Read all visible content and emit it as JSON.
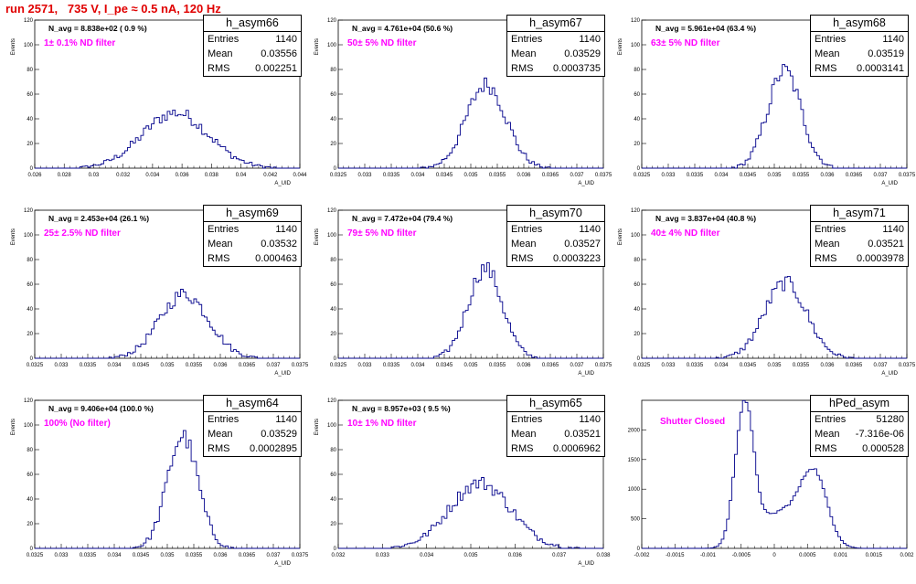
{
  "title": "run 2571,   735 V, I_pe ≈ 0.5 nA, 120 Hz",
  "colors": {
    "title": "#e00000",
    "histogram": "#00008b",
    "note": "#ff00ff"
  },
  "chart_data": [
    {
      "type": "histogram",
      "name": "h_asym66",
      "navg": "N_avg = 8.838e+02 ( 0.9 %)",
      "note": "1± 0.1% ND filter",
      "stats": {
        "Entries": "1140",
        "Mean": "0.03556",
        "RMS": "0.002251"
      },
      "xlabel": "A_UID",
      "ylabel": "Events",
      "xlim": [
        0.026,
        0.044
      ],
      "ylim": [
        0,
        120
      ],
      "xticks": [
        "0.026",
        "0.028",
        "0.03",
        "0.032",
        "0.034",
        "0.036",
        "0.038",
        "0.04",
        "0.042",
        "0.044"
      ],
      "yticks": [
        "0",
        "20",
        "40",
        "60",
        "80",
        "100",
        "120"
      ],
      "peak": 45
    },
    {
      "type": "histogram",
      "name": "h_asym67",
      "navg": "N_avg = 4.761e+04 (50.6 %)",
      "note": "50± 5% ND filter",
      "stats": {
        "Entries": "1140",
        "Mean": "0.03529",
        "RMS": "0.0003735"
      },
      "xlabel": "A_UID",
      "ylabel": "Events",
      "xlim": [
        0.0325,
        0.0375
      ],
      "ylim": [
        0,
        120
      ],
      "xticks": [
        "0.0325",
        "0.033",
        "0.0335",
        "0.034",
        "0.0345",
        "0.035",
        "0.0355",
        "0.036",
        "0.0365",
        "0.037",
        "0.0375"
      ],
      "yticks": [
        "0",
        "20",
        "40",
        "60",
        "80",
        "100",
        "120"
      ],
      "peak": 68
    },
    {
      "type": "histogram",
      "name": "h_asym68",
      "navg": "N_avg = 5.961e+04 (63.4 %)",
      "note": "63± 5% ND filter",
      "stats": {
        "Entries": "1140",
        "Mean": "0.03519",
        "RMS": "0.0003141"
      },
      "xlabel": "A_UID",
      "ylabel": "Events",
      "xlim": [
        0.0325,
        0.0375
      ],
      "ylim": [
        0,
        120
      ],
      "xticks": [
        "0.0325",
        "0.033",
        "0.0335",
        "0.034",
        "0.0345",
        "0.035",
        "0.0355",
        "0.036",
        "0.0365",
        "0.037",
        "0.0375"
      ],
      "yticks": [
        "0",
        "20",
        "40",
        "60",
        "80",
        "100",
        "120"
      ],
      "peak": 79
    },
    {
      "type": "histogram",
      "name": "h_asym69",
      "navg": "N_avg = 2.453e+04 (26.1 %)",
      "note": "25± 2.5% ND filter",
      "stats": {
        "Entries": "1140",
        "Mean": "0.03532",
        "RMS": "0.000463"
      },
      "xlabel": "A_UID",
      "ylabel": "Events",
      "xlim": [
        0.0325,
        0.0375
      ],
      "ylim": [
        0,
        120
      ],
      "xticks": [
        "0.0325",
        "0.033",
        "0.0335",
        "0.034",
        "0.0345",
        "0.035",
        "0.0355",
        "0.036",
        "0.0365",
        "0.037",
        "0.0375"
      ],
      "yticks": [
        "0",
        "20",
        "40",
        "60",
        "80",
        "100",
        "120"
      ],
      "peak": 52
    },
    {
      "type": "histogram",
      "name": "h_asym70",
      "navg": "N_avg = 7.472e+04 (79.4 %)",
      "note": "79± 5% ND filter",
      "stats": {
        "Entries": "1140",
        "Mean": "0.03527",
        "RMS": "0.0003223"
      },
      "xlabel": "A_UID",
      "ylabel": "Events",
      "xlim": [
        0.0325,
        0.0375
      ],
      "ylim": [
        0,
        120
      ],
      "xticks": [
        "0.0325",
        "0.033",
        "0.0335",
        "0.034",
        "0.0345",
        "0.035",
        "0.0355",
        "0.036",
        "0.0365",
        "0.037",
        "0.0375"
      ],
      "yticks": [
        "0",
        "20",
        "40",
        "60",
        "80",
        "100",
        "120"
      ],
      "peak": 73
    },
    {
      "type": "histogram",
      "name": "h_asym71",
      "navg": "N_avg = 3.837e+04 (40.8 %)",
      "note": "40± 4% ND filter",
      "stats": {
        "Entries": "1140",
        "Mean": "0.03521",
        "RMS": "0.0003978"
      },
      "xlabel": "A_UID",
      "ylabel": "Events",
      "xlim": [
        0.0325,
        0.0375
      ],
      "ylim": [
        0,
        120
      ],
      "xticks": [
        "0.0325",
        "0.033",
        "0.0335",
        "0.034",
        "0.0345",
        "0.035",
        "0.0355",
        "0.036",
        "0.0365",
        "0.037",
        "0.0375"
      ],
      "yticks": [
        "0",
        "20",
        "40",
        "60",
        "80",
        "100",
        "120"
      ],
      "peak": 61
    },
    {
      "type": "histogram",
      "name": "h_asym64",
      "navg": "N_avg = 9.406e+04 (100.0 %)",
      "note": "100% (No filter)",
      "stats": {
        "Entries": "1140",
        "Mean": "0.03529",
        "RMS": "0.0002895"
      },
      "xlabel": "A_UID",
      "ylabel": "Events",
      "xlim": [
        0.0325,
        0.0375
      ],
      "ylim": [
        0,
        120
      ],
      "xticks": [
        "0.0325",
        "0.033",
        "0.0335",
        "0.034",
        "0.0345",
        "0.035",
        "0.0355",
        "0.036",
        "0.0365",
        "0.037",
        "0.0375"
      ],
      "yticks": [
        "0",
        "20",
        "40",
        "60",
        "80",
        "100",
        "120"
      ],
      "peak": 91
    },
    {
      "type": "histogram",
      "name": "h_asym65",
      "navg": "N_avg = 8.957e+03 ( 9.5 %)",
      "note": "10± 1% ND filter",
      "stats": {
        "Entries": "1140",
        "Mean": "0.03521",
        "RMS": "0.0006962"
      },
      "xlabel": "A_UID",
      "ylabel": "Events",
      "xlim": [
        0.032,
        0.038
      ],
      "ylim": [
        0,
        120
      ],
      "xticks": [
        "0.032",
        "0.033",
        "0.034",
        "0.035",
        "0.036",
        "0.037",
        "0.038"
      ],
      "yticks": [
        "0",
        "20",
        "40",
        "60",
        "80",
        "100",
        "120"
      ],
      "peak": 53
    },
    {
      "type": "histogram",
      "name": "hPed_asym",
      "navg": "",
      "note": "Shutter Closed",
      "stats": {
        "Entries": "51280",
        "Mean": "-7.316e-06",
        "RMS": "0.000528"
      },
      "xlabel": "",
      "ylabel": "",
      "xlim": [
        -0.002,
        0.002
      ],
      "ylim": [
        0,
        2500
      ],
      "xticks": [
        "-0.002",
        "-0.0015",
        "-0.001",
        "-0.0005",
        "0",
        "0.0005",
        "0.001",
        "0.0015",
        "0.002"
      ],
      "yticks": [
        "0",
        "500",
        "1000",
        "1500",
        "2000"
      ],
      "peak": 2400
    }
  ]
}
